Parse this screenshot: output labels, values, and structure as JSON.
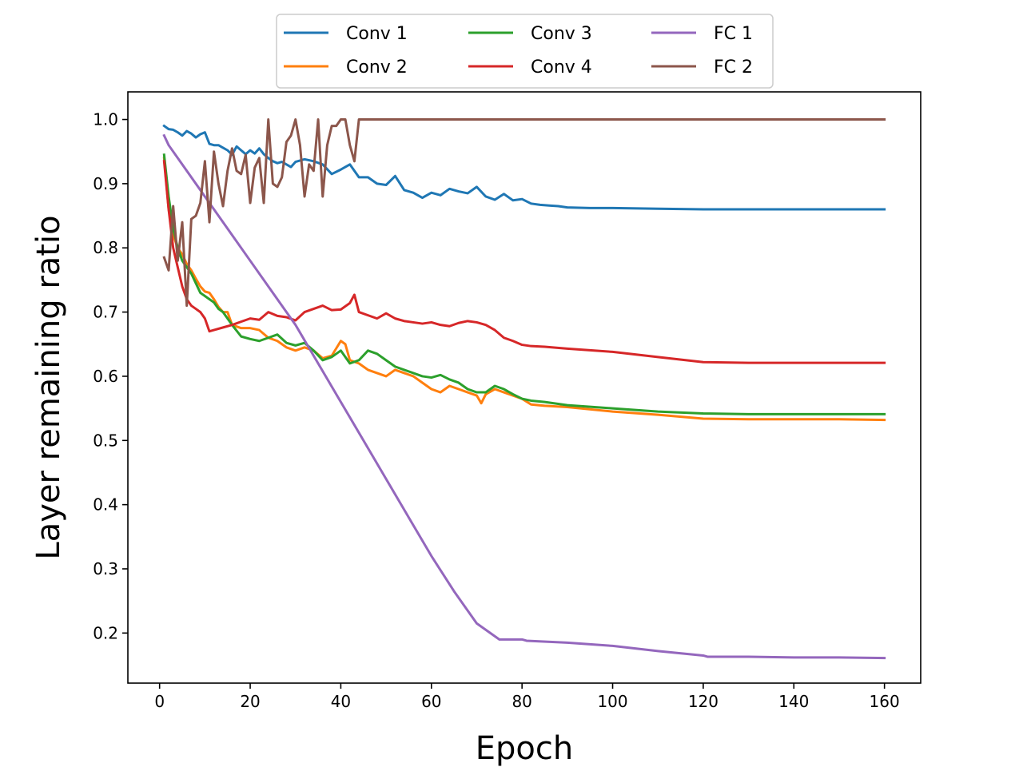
{
  "chart_data": {
    "type": "line",
    "title": "",
    "xlabel": "Epoch",
    "ylabel": "Layer remaining ratio",
    "xlim": [
      -7,
      168
    ],
    "ylim": [
      0.122,
      1.043
    ],
    "xticks": [
      0,
      20,
      40,
      60,
      80,
      100,
      120,
      140,
      160
    ],
    "yticks": [
      0.2,
      0.3,
      0.4,
      0.5,
      0.6,
      0.7,
      0.8,
      0.9,
      1.0
    ],
    "xtick_labels": [
      "0",
      "20",
      "40",
      "60",
      "80",
      "100",
      "120",
      "140",
      "160"
    ],
    "ytick_labels": [
      "0.2",
      "0.3",
      "0.4",
      "0.5",
      "0.6",
      "0.7",
      "0.8",
      "0.9",
      "1.0"
    ],
    "grid": false,
    "legend_position": "top-center, above plot",
    "series": [
      {
        "name": "Conv 1",
        "color": "#1f77b4",
        "x": [
          1,
          2,
          3,
          4,
          5,
          6,
          7,
          8,
          9,
          10,
          11,
          12,
          13,
          14,
          15,
          16,
          17,
          18,
          19,
          20,
          21,
          22,
          23,
          24,
          25,
          26,
          27,
          28,
          29,
          30,
          32,
          34,
          36,
          38,
          40,
          42,
          44,
          46,
          48,
          50,
          52,
          54,
          56,
          58,
          60,
          62,
          64,
          66,
          68,
          70,
          72,
          74,
          76,
          78,
          80,
          82,
          84,
          86,
          88,
          90,
          95,
          100,
          110,
          120,
          130,
          140,
          150,
          160
        ],
        "y": [
          0.99,
          0.985,
          0.984,
          0.98,
          0.975,
          0.982,
          0.978,
          0.972,
          0.977,
          0.98,
          0.962,
          0.96,
          0.96,
          0.956,
          0.952,
          0.945,
          0.958,
          0.952,
          0.946,
          0.952,
          0.947,
          0.955,
          0.946,
          0.94,
          0.935,
          0.932,
          0.934,
          0.93,
          0.926,
          0.934,
          0.938,
          0.935,
          0.93,
          0.915,
          0.922,
          0.93,
          0.91,
          0.91,
          0.9,
          0.898,
          0.912,
          0.89,
          0.886,
          0.878,
          0.886,
          0.882,
          0.892,
          0.888,
          0.885,
          0.895,
          0.88,
          0.875,
          0.884,
          0.874,
          0.876,
          0.869,
          0.867,
          0.866,
          0.865,
          0.863,
          0.862,
          0.862,
          0.861,
          0.86,
          0.86,
          0.86,
          0.86,
          0.86
        ]
      },
      {
        "name": "Conv 2",
        "color": "#ff7f0e",
        "x": [
          1,
          2,
          3,
          4,
          5,
          6,
          7,
          8,
          9,
          10,
          11,
          12,
          13,
          14,
          15,
          16,
          18,
          20,
          22,
          24,
          26,
          28,
          30,
          32,
          34,
          36,
          38,
          40,
          41,
          42,
          44,
          46,
          48,
          50,
          52,
          54,
          56,
          58,
          60,
          62,
          64,
          66,
          68,
          70,
          71,
          72,
          74,
          76,
          78,
          80,
          82,
          85,
          90,
          100,
          110,
          120,
          130,
          140,
          150,
          160
        ],
        "y": [
          0.94,
          0.86,
          0.82,
          0.8,
          0.79,
          0.775,
          0.765,
          0.752,
          0.74,
          0.732,
          0.73,
          0.72,
          0.708,
          0.7,
          0.7,
          0.68,
          0.675,
          0.675,
          0.672,
          0.66,
          0.655,
          0.645,
          0.64,
          0.645,
          0.64,
          0.628,
          0.632,
          0.655,
          0.65,
          0.625,
          0.62,
          0.61,
          0.605,
          0.6,
          0.61,
          0.605,
          0.6,
          0.59,
          0.58,
          0.575,
          0.585,
          0.58,
          0.575,
          0.57,
          0.558,
          0.572,
          0.58,
          0.575,
          0.57,
          0.565,
          0.556,
          0.554,
          0.552,
          0.545,
          0.54,
          0.534,
          0.533,
          0.533,
          0.533,
          0.532
        ]
      },
      {
        "name": "Conv 3",
        "color": "#2ca02c",
        "x": [
          1,
          2,
          3,
          4,
          5,
          6,
          7,
          8,
          9,
          10,
          11,
          12,
          13,
          14,
          15,
          16,
          18,
          20,
          22,
          24,
          26,
          28,
          30,
          32,
          34,
          36,
          38,
          40,
          42,
          44,
          46,
          48,
          50,
          52,
          54,
          56,
          58,
          60,
          62,
          64,
          66,
          68,
          70,
          72,
          74,
          76,
          78,
          80,
          82,
          85,
          90,
          100,
          110,
          120,
          130,
          140,
          150,
          160
        ],
        "y": [
          0.945,
          0.88,
          0.83,
          0.8,
          0.78,
          0.77,
          0.76,
          0.745,
          0.73,
          0.725,
          0.72,
          0.715,
          0.705,
          0.7,
          0.69,
          0.68,
          0.662,
          0.658,
          0.655,
          0.66,
          0.665,
          0.652,
          0.648,
          0.652,
          0.64,
          0.625,
          0.63,
          0.64,
          0.62,
          0.625,
          0.64,
          0.635,
          0.625,
          0.615,
          0.61,
          0.605,
          0.6,
          0.598,
          0.602,
          0.595,
          0.59,
          0.58,
          0.575,
          0.575,
          0.585,
          0.58,
          0.572,
          0.565,
          0.562,
          0.56,
          0.555,
          0.55,
          0.545,
          0.542,
          0.541,
          0.541,
          0.541,
          0.541
        ]
      },
      {
        "name": "Conv 4",
        "color": "#d62728",
        "x": [
          1,
          2,
          3,
          4,
          5,
          6,
          7,
          8,
          9,
          10,
          11,
          12,
          14,
          16,
          18,
          20,
          22,
          24,
          26,
          28,
          30,
          32,
          34,
          36,
          38,
          40,
          42,
          43,
          44,
          46,
          48,
          50,
          52,
          54,
          56,
          58,
          60,
          62,
          64,
          66,
          68,
          70,
          72,
          74,
          76,
          78,
          80,
          82,
          85,
          90,
          100,
          110,
          120,
          130,
          140,
          160
        ],
        "y": [
          0.935,
          0.86,
          0.8,
          0.77,
          0.74,
          0.72,
          0.71,
          0.705,
          0.7,
          0.69,
          0.67,
          0.672,
          0.676,
          0.68,
          0.685,
          0.69,
          0.688,
          0.7,
          0.694,
          0.692,
          0.687,
          0.7,
          0.705,
          0.71,
          0.703,
          0.704,
          0.714,
          0.727,
          0.7,
          0.695,
          0.69,
          0.698,
          0.69,
          0.686,
          0.684,
          0.682,
          0.684,
          0.68,
          0.678,
          0.683,
          0.686,
          0.684,
          0.68,
          0.672,
          0.66,
          0.655,
          0.649,
          0.647,
          0.646,
          0.643,
          0.638,
          0.63,
          0.622,
          0.621,
          0.621,
          0.621
        ]
      },
      {
        "name": "FC 1",
        "color": "#9467bd",
        "x": [
          1,
          2,
          5,
          10,
          15,
          20,
          25,
          30,
          35,
          40,
          45,
          50,
          55,
          60,
          65,
          70,
          75,
          80,
          81,
          90,
          100,
          110,
          120,
          121,
          130,
          140,
          150,
          160
        ],
        "y": [
          0.975,
          0.96,
          0.93,
          0.88,
          0.83,
          0.78,
          0.73,
          0.68,
          0.62,
          0.56,
          0.5,
          0.44,
          0.38,
          0.32,
          0.265,
          0.215,
          0.19,
          0.19,
          0.188,
          0.185,
          0.18,
          0.172,
          0.165,
          0.163,
          0.163,
          0.162,
          0.162,
          0.161
        ]
      },
      {
        "name": "FC 2",
        "color": "#8c564b",
        "x": [
          1,
          2,
          3,
          4,
          5,
          6,
          7,
          8,
          9,
          10,
          11,
          12,
          13,
          14,
          15,
          16,
          17,
          18,
          19,
          20,
          21,
          22,
          23,
          24,
          25,
          26,
          27,
          28,
          29,
          30,
          31,
          32,
          33,
          34,
          35,
          36,
          37,
          38,
          39,
          40,
          41,
          42,
          43,
          44,
          45,
          50,
          60,
          80,
          100,
          120,
          140,
          160
        ],
        "y": [
          0.785,
          0.765,
          0.865,
          0.78,
          0.84,
          0.71,
          0.845,
          0.85,
          0.87,
          0.935,
          0.84,
          0.95,
          0.9,
          0.865,
          0.92,
          0.955,
          0.92,
          0.915,
          0.945,
          0.87,
          0.925,
          0.94,
          0.87,
          1.0,
          0.9,
          0.895,
          0.91,
          0.965,
          0.975,
          1.0,
          0.96,
          0.88,
          0.93,
          0.92,
          1.0,
          0.88,
          0.96,
          0.99,
          0.99,
          1.0,
          1.0,
          0.96,
          0.935,
          1.0,
          1.0,
          1.0,
          1.0,
          1.0,
          1.0,
          1.0,
          1.0,
          1.0
        ]
      }
    ]
  }
}
